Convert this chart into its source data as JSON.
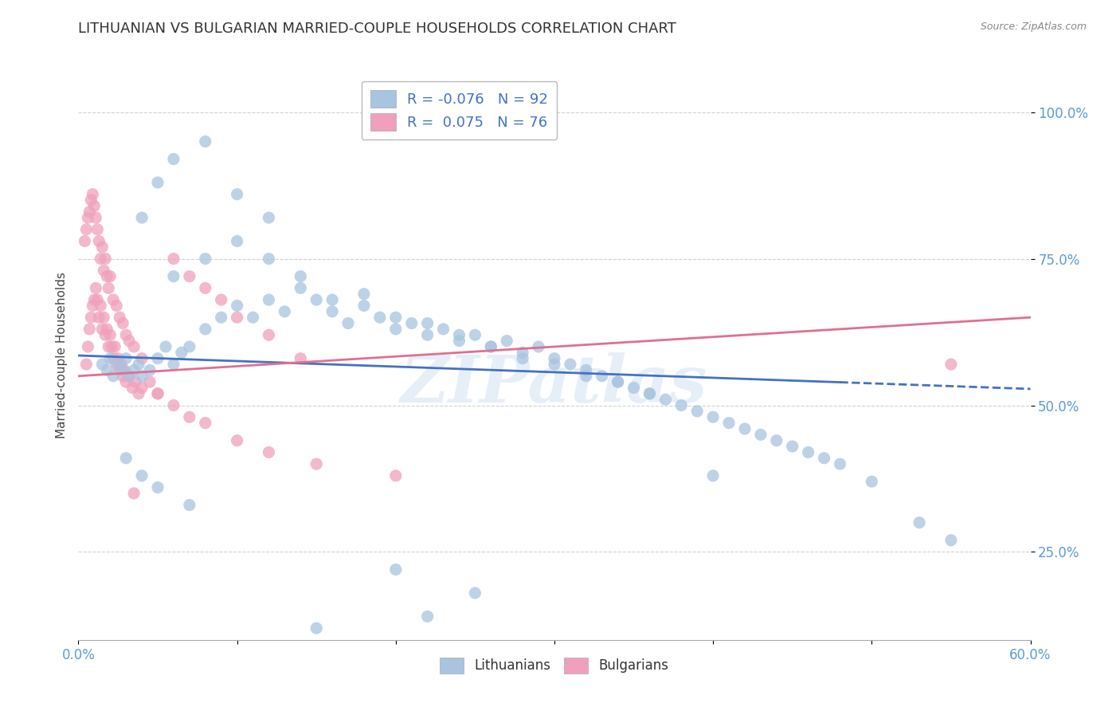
{
  "title": "LITHUANIAN VS BULGARIAN MARRIED-COUPLE HOUSEHOLDS CORRELATION CHART",
  "source": "Source: ZipAtlas.com",
  "ylabel": "Married-couple Households",
  "xlim": [
    0.0,
    60.0
  ],
  "ylim": [
    10.0,
    107.0
  ],
  "yticks": [
    25.0,
    50.0,
    75.0,
    100.0
  ],
  "ytick_labels": [
    "25.0%",
    "50.0%",
    "75.0%",
    "100.0%"
  ],
  "xticks": [
    0.0,
    10.0,
    20.0,
    30.0,
    40.0,
    50.0,
    60.0
  ],
  "xtick_labels": [
    "0.0%",
    "",
    "",
    "",
    "",
    "",
    "60.0%"
  ],
  "legend_R_lith": "-0.076",
  "legend_N_lith": "92",
  "legend_R_bulg": "0.075",
  "legend_N_bulg": "76",
  "lith_color": "#a8c4e0",
  "bulg_color": "#f0a0bc",
  "lith_line_color": "#4472c4",
  "bulg_line_color": "#e07090",
  "watermark": "ZIPatlas",
  "background_color": "#ffffff",
  "tick_color": "#5b9bd5",
  "lith_x": [
    1.5,
    1.8,
    2.0,
    2.2,
    2.5,
    2.8,
    3.0,
    3.2,
    3.5,
    3.8,
    4.0,
    4.5,
    5.0,
    5.5,
    6.0,
    6.5,
    7.0,
    8.0,
    9.0,
    10.0,
    11.0,
    12.0,
    13.0,
    14.0,
    15.0,
    16.0,
    17.0,
    18.0,
    19.0,
    20.0,
    21.0,
    22.0,
    23.0,
    24.0,
    25.0,
    26.0,
    27.0,
    28.0,
    29.0,
    30.0,
    31.0,
    32.0,
    33.0,
    34.0,
    35.0,
    36.0,
    37.0,
    38.0,
    39.0,
    40.0,
    41.0,
    42.0,
    43.0,
    44.0,
    45.0,
    46.0,
    47.0,
    48.0,
    6.0,
    8.0,
    10.0,
    12.0,
    14.0,
    16.0,
    18.0,
    20.0,
    22.0,
    24.0,
    26.0,
    28.0,
    30.0,
    32.0,
    34.0,
    36.0,
    4.0,
    5.0,
    6.0,
    8.0,
    10.0,
    12.0,
    3.0,
    4.0,
    5.0,
    7.0,
    40.0,
    50.0,
    20.0,
    25.0,
    22.0,
    15.0,
    53.0,
    55.0
  ],
  "lith_y": [
    57.0,
    56.0,
    58.0,
    55.0,
    57.0,
    56.0,
    58.0,
    55.0,
    56.0,
    57.0,
    55.0,
    56.0,
    58.0,
    60.0,
    57.0,
    59.0,
    60.0,
    63.0,
    65.0,
    67.0,
    65.0,
    68.0,
    66.0,
    70.0,
    68.0,
    66.0,
    64.0,
    67.0,
    65.0,
    63.0,
    64.0,
    62.0,
    63.0,
    61.0,
    62.0,
    60.0,
    61.0,
    59.0,
    60.0,
    58.0,
    57.0,
    56.0,
    55.0,
    54.0,
    53.0,
    52.0,
    51.0,
    50.0,
    49.0,
    48.0,
    47.0,
    46.0,
    45.0,
    44.0,
    43.0,
    42.0,
    41.0,
    40.0,
    72.0,
    75.0,
    78.0,
    75.0,
    72.0,
    68.0,
    69.0,
    65.0,
    64.0,
    62.0,
    60.0,
    58.0,
    57.0,
    55.0,
    54.0,
    52.0,
    82.0,
    88.0,
    92.0,
    95.0,
    86.0,
    82.0,
    41.0,
    38.0,
    36.0,
    33.0,
    38.0,
    37.0,
    22.0,
    18.0,
    14.0,
    12.0,
    30.0,
    27.0
  ],
  "bulg_x": [
    0.5,
    0.6,
    0.7,
    0.8,
    0.9,
    1.0,
    1.1,
    1.2,
    1.3,
    1.4,
    1.5,
    1.6,
    1.7,
    1.8,
    1.9,
    2.0,
    2.1,
    2.2,
    2.3,
    2.4,
    2.5,
    2.6,
    2.7,
    2.8,
    2.9,
    3.0,
    3.2,
    3.4,
    3.6,
    3.8,
    4.0,
    4.5,
    5.0,
    0.4,
    0.5,
    0.6,
    0.7,
    0.8,
    0.9,
    1.0,
    1.1,
    1.2,
    1.3,
    1.4,
    1.5,
    1.6,
    1.7,
    1.8,
    1.9,
    2.0,
    2.2,
    2.4,
    2.6,
    2.8,
    3.0,
    3.2,
    3.5,
    4.0,
    5.0,
    6.0,
    7.0,
    8.0,
    10.0,
    12.0,
    15.0,
    6.0,
    7.0,
    8.0,
    9.0,
    10.0,
    12.0,
    14.0,
    55.0,
    3.5,
    20.0
  ],
  "bulg_y": [
    57.0,
    60.0,
    63.0,
    65.0,
    67.0,
    68.0,
    70.0,
    68.0,
    65.0,
    67.0,
    63.0,
    65.0,
    62.0,
    63.0,
    60.0,
    62.0,
    60.0,
    58.0,
    60.0,
    57.0,
    58.0,
    56.0,
    57.0,
    55.0,
    56.0,
    54.0,
    55.0,
    53.0,
    54.0,
    52.0,
    53.0,
    54.0,
    52.0,
    78.0,
    80.0,
    82.0,
    83.0,
    85.0,
    86.0,
    84.0,
    82.0,
    80.0,
    78.0,
    75.0,
    77.0,
    73.0,
    75.0,
    72.0,
    70.0,
    72.0,
    68.0,
    67.0,
    65.0,
    64.0,
    62.0,
    61.0,
    60.0,
    58.0,
    52.0,
    50.0,
    48.0,
    47.0,
    44.0,
    42.0,
    40.0,
    75.0,
    72.0,
    70.0,
    68.0,
    65.0,
    62.0,
    58.0,
    57.0,
    35.0,
    38.0
  ],
  "lith_trend_x0": 0.0,
  "lith_trend_y0": 58.5,
  "lith_trend_x1": 48.0,
  "lith_trend_y1": 54.0,
  "lith_trend_x1_dash": 48.0,
  "lith_trend_y1_dash": 54.0,
  "lith_trend_x_end": 60.0,
  "lith_trend_y_end": 52.8,
  "bulg_trend_x0": 0.0,
  "bulg_trend_y0": 55.0,
  "bulg_trend_x1": 60.0,
  "bulg_trend_y1": 65.0
}
